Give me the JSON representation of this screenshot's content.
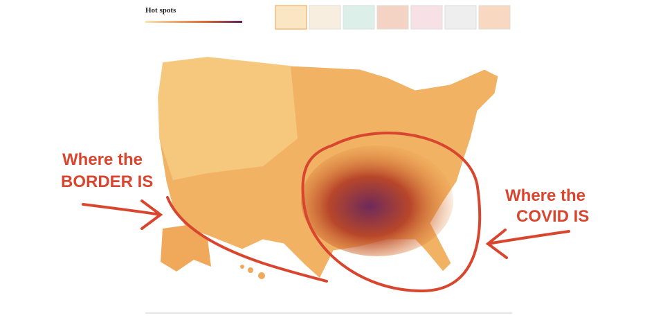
{
  "header": {
    "title": "Hot spots"
  },
  "annotations": {
    "left": {
      "lines": [
        "Where the",
        "BORDER IS"
      ]
    },
    "right": {
      "lines": [
        "Where the",
        "COVID IS"
      ]
    }
  }
}
